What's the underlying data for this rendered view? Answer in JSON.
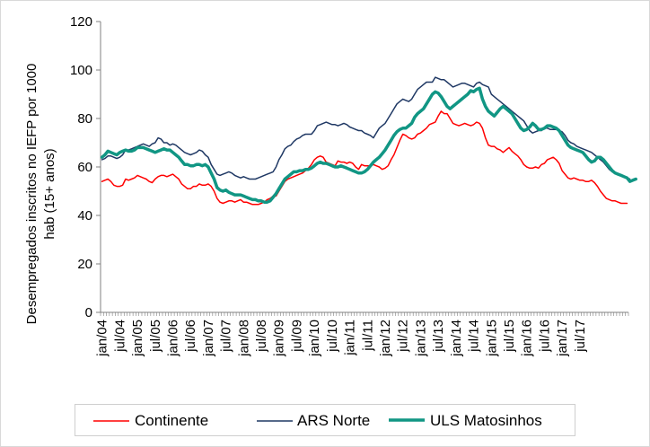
{
  "chart_data": {
    "type": "line",
    "title": "",
    "ylabel": "Desempregados inscritos no IEFP por 1000 hab (15+ anos)",
    "ylabel_lines": [
      "Desempregados inscritos no IEFP por 1000",
      "hab (15+ anos)"
    ],
    "ylim": [
      0,
      120
    ],
    "yticks": [
      "0",
      "20",
      "40",
      "60",
      "80",
      "100",
      "120"
    ],
    "xticks": [
      "jan/04",
      "jul/04",
      "jan/05",
      "jul/05",
      "jan/06",
      "jul/06",
      "jan/07",
      "jul/07",
      "jan/08",
      "jul/08",
      "jan/09",
      "jul/09",
      "jan/10",
      "jul/10",
      "jan/11",
      "jul/11",
      "jan/12",
      "jul/12",
      "jan/13",
      "jul/13",
      "jan/14",
      "jul/14",
      "jan/15",
      "jul/15",
      "jan/16",
      "jul/16",
      "jan/17",
      "jul/17"
    ],
    "x_start": "jan/04",
    "points_per_year": 12,
    "grid": false,
    "legend_position": "bottom",
    "series": [
      {
        "name": "Continente",
        "color": "#ff0000",
        "width": 1.5,
        "values": [
          54,
          54.5,
          55,
          54,
          52.5,
          52,
          52,
          52.5,
          55,
          54.5,
          55,
          55.5,
          56.5,
          56,
          55.5,
          55,
          54,
          53.5,
          55,
          56,
          56.5,
          56.5,
          56,
          56.5,
          57,
          56,
          55,
          53,
          52,
          51,
          51,
          52,
          52,
          53,
          52.5,
          52.5,
          53,
          52,
          50,
          47,
          45.5,
          45,
          45.5,
          46,
          46,
          45.5,
          46,
          46.5,
          45.5,
          45.5,
          45,
          44.5,
          44.5,
          44.5,
          45,
          45.5,
          46.5,
          47,
          48,
          48,
          50,
          52,
          54,
          55,
          55.5,
          56,
          56.5,
          57,
          57.5,
          58.5,
          59.5,
          61,
          63,
          64,
          64.5,
          64,
          62,
          61.5,
          61,
          60.5,
          62.5,
          62,
          62,
          61.5,
          62,
          61.5,
          60,
          59,
          61,
          60.5,
          60.5,
          60.5,
          61,
          60.5,
          60,
          59,
          59.5,
          60.5,
          63,
          65,
          68,
          71,
          73.5,
          73,
          72,
          71.5,
          72,
          73.5,
          74,
          75,
          76,
          77.5,
          78,
          78.5,
          81,
          83,
          82,
          82,
          80,
          78,
          77.5,
          77,
          77.5,
          78,
          77.5,
          77,
          77.5,
          78.5,
          78,
          76,
          72,
          69,
          68.5,
          68.5,
          67.5,
          67,
          66,
          67,
          68,
          66.5,
          65.5,
          64.5,
          63,
          61,
          60,
          59.5,
          59.5,
          60,
          59.5,
          61,
          61.5,
          63,
          63.5,
          64,
          63,
          61.5,
          58.5,
          57,
          55.5,
          55,
          55.5,
          55,
          54.5,
          54.5,
          54,
          54,
          54.5,
          53.5,
          52,
          50,
          48.5,
          47,
          46.5,
          46,
          46,
          45.5,
          45,
          45,
          45
        ]
      },
      {
        "name": "ARS Norte",
        "color": "#1f3864",
        "width": 1.5,
        "values": [
          63,
          63.5,
          64.5,
          64.5,
          64,
          63.5,
          64,
          65,
          67,
          67,
          67.5,
          68,
          68.5,
          69,
          69.5,
          69,
          68.5,
          69.5,
          70,
          72,
          71.5,
          70,
          70,
          69,
          69.5,
          69,
          68,
          67,
          66,
          65.5,
          65,
          65.5,
          66,
          67,
          66.5,
          65,
          64,
          61,
          59,
          57,
          56.5,
          57,
          57.5,
          58,
          57.5,
          56.5,
          56,
          55.5,
          56,
          55.5,
          55,
          55,
          55,
          55.5,
          56,
          56.5,
          57,
          57.5,
          58,
          60,
          63,
          65,
          67.5,
          68.5,
          69,
          70.5,
          71.5,
          72,
          73,
          73.5,
          73.5,
          73.5,
          75,
          77,
          77.5,
          78,
          78.5,
          78,
          77.5,
          77.5,
          77,
          77.5,
          78,
          77.5,
          76.5,
          76,
          75.5,
          75,
          75,
          74,
          73.5,
          73,
          72,
          74,
          76,
          77,
          78,
          80,
          82,
          84,
          86,
          87,
          88,
          87.5,
          87,
          88,
          90,
          92,
          93,
          94,
          95,
          95,
          95,
          97,
          96.5,
          96,
          96,
          95,
          94,
          93,
          93.5,
          94,
          94.5,
          94.5,
          94,
          93.5,
          93,
          94.5,
          95,
          94,
          93.5,
          93,
          90,
          89,
          88,
          87,
          86,
          85,
          84,
          83,
          82,
          81,
          80,
          79,
          77,
          75,
          74,
          74.5,
          75,
          75,
          76,
          76,
          75.5,
          75.5,
          75.5,
          75,
          74.5,
          73,
          71,
          70,
          69.5,
          68.5,
          68,
          67.5,
          67,
          66.5,
          66,
          65,
          64,
          63,
          62,
          60.5,
          59,
          58,
          57.5,
          57,
          56.5,
          56,
          55.5,
          55
        ]
      },
      {
        "name": "ULS Matosinhos",
        "color": "#119684",
        "width": 3.5,
        "values": [
          64,
          65,
          66.5,
          66,
          65.5,
          65,
          66,
          66.5,
          67,
          66.5,
          66.5,
          67,
          68,
          68,
          68,
          67.5,
          67,
          66.5,
          66,
          66.5,
          67,
          67.5,
          67,
          67,
          66,
          65,
          64,
          62.5,
          61,
          61,
          60.5,
          60.5,
          61,
          61,
          60.5,
          61,
          60,
          57.5,
          55,
          51.5,
          50.5,
          50,
          50.5,
          49.5,
          49,
          48.5,
          48.5,
          48.5,
          48,
          47.5,
          47,
          46.5,
          46.5,
          46,
          46,
          45.5,
          45.5,
          46,
          47.5,
          49,
          51,
          53,
          55,
          56,
          57,
          58,
          58,
          58.5,
          58.5,
          59,
          59,
          59.5,
          60.5,
          61.5,
          62,
          61.5,
          61.5,
          61,
          60.5,
          60,
          60,
          60.5,
          60,
          59.5,
          59,
          58.5,
          58,
          57.5,
          57.5,
          58,
          59,
          60.5,
          62,
          63,
          64,
          65.5,
          67,
          69,
          71,
          73,
          74.5,
          75.5,
          76,
          76,
          77,
          78,
          80.5,
          82,
          83,
          84,
          86,
          88,
          90,
          91,
          90.5,
          89,
          87,
          85,
          84,
          85,
          86,
          87,
          88,
          89,
          90,
          91.5,
          91,
          92,
          92.5,
          88,
          85,
          83,
          82,
          81,
          82.5,
          84,
          85,
          84,
          83,
          82,
          80,
          78,
          76,
          75,
          75.5,
          76.5,
          78,
          77,
          75.5,
          75.5,
          76,
          77,
          77,
          76.5,
          76,
          75,
          73,
          71,
          69,
          68,
          67.5,
          67,
          66.5,
          66,
          64.5,
          63,
          62,
          62.5,
          64,
          64,
          63,
          61.5,
          60,
          58.5,
          57.5,
          57,
          56.5,
          56,
          55.5,
          54,
          54.5,
          55
        ]
      }
    ]
  }
}
